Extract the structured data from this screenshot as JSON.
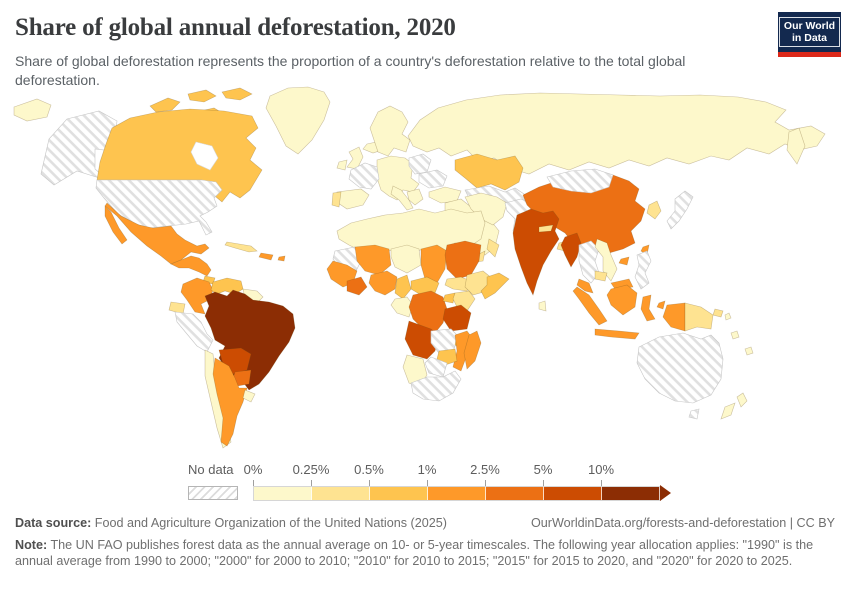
{
  "header": {
    "title": "Share of global annual deforestation, 2020",
    "subtitle": "Share of global deforestation represents the proportion of a country's deforestation relative to the total global deforestation.",
    "logo_line1": "Our World",
    "logo_line2": "in Data",
    "brand_colors": {
      "navy": "#13294f",
      "red": "#dc2819"
    }
  },
  "chart_data": {
    "type": "choropleth_map",
    "title": "Share of global annual deforestation, 2020",
    "unit": "%",
    "year": "2020",
    "legend": {
      "no_data_label": "No data",
      "tick_labels": [
        "0%",
        "0.25%",
        "0.5%",
        "1%",
        "2.5%",
        "5%",
        "10%"
      ],
      "bucket_ranges": [
        "0%–0.25%",
        "0.25%–0.5%",
        "0.5%–1%",
        "1%–2.5%",
        "2.5%–5%",
        "5%–10%",
        ">10%"
      ],
      "bucket_colors": [
        "#fdf8cb",
        "#fee391",
        "#fec44f",
        "#fe9929",
        "#ec7014",
        "#cc4c02",
        "#8c2d04"
      ],
      "no_data_fill": "hatched"
    },
    "regions": {
      "russia-east-tip": 0,
      "alaska": "no_data",
      "canada": 2,
      "arctic-islands": 2,
      "greenland": 0,
      "iceland": 0,
      "usa": "no_data",
      "mexico": 3,
      "central-america": 3,
      "panama": 2,
      "cuba": 1,
      "hispaniola": 3,
      "puerto-rico": 3,
      "colombia": 3,
      "venezuela": 2,
      "guianas": 0,
      "ecuador": 1,
      "peru": "no_data",
      "brazil": 6,
      "bolivia": 5,
      "paraguay": 4,
      "chile": 0,
      "argentina": 3,
      "uruguay": 0,
      "scandinavia": 0,
      "uk": 0,
      "ireland": 0,
      "france": "no_data",
      "central-europe": 0,
      "spain": 0,
      "portugal": 1,
      "italy": 0,
      "balkans": 0,
      "belarus-baltics": "no_data",
      "ukraine": "no_data",
      "russia": 0,
      "kamchatka": 0,
      "kazakhstan": 2,
      "central-asia": "no_data",
      "turkey": 0,
      "middle-east": 0,
      "iran": 0,
      "yemen": 1,
      "oman": 1,
      "afghanistan-pakistan": "no_data",
      "india": 5,
      "nepal": 1,
      "bangladesh": 1,
      "sri-lanka": 0,
      "china": 4,
      "mongolia": "no_data",
      "myanmar": 5,
      "thailand-laos": "no_data",
      "vietnam": 0,
      "cambodia": 1,
      "korea": 1,
      "japan": "no_data",
      "taiwan": 3,
      "hainan": 3,
      "philippines": "no_data",
      "malaysia": 3,
      "indonesia": 3,
      "papua-new-guinea": 1,
      "pacific-islands": 0,
      "australia": "no_data",
      "tasmania": "no_data",
      "new-zealand": 0,
      "north-africa": 0,
      "mauritania": "no_data",
      "mali": 3,
      "niger": 0,
      "chad": 3,
      "sudan": 4,
      "south-sudan": 1,
      "ethiopia": 1,
      "somalia": 2,
      "west-africa": 3,
      "ghana-cote-divoire": 4,
      "nigeria": 3,
      "cameroon": 2,
      "central-african-republic": 2,
      "gabon-congo": 0,
      "drc": 4,
      "uganda": 2,
      "kenya": 1,
      "tanzania": 5,
      "angola": 5,
      "zambia": "no_data",
      "malawi": 2,
      "mozambique": 3,
      "zimbabwe": 2,
      "botswana": "no_data",
      "namibia": 0,
      "south-africa": "no_data",
      "madagascar": 3
    }
  },
  "footer": {
    "data_source_label": "Data source:",
    "data_source_value": " Food and Agriculture Organization of the United Nations (2025)",
    "attribution": "OurWorldinData.org/forests-and-deforestation | CC BY",
    "note_label": "Note:",
    "note_text": " The UN FAO publishes forest data as the annual average on 10- or 5-year timescales. The following year allocation applies: \"1990\" is the annual average from 1990 to 2000; \"2000\" for 2000 to 2010; \"2010\" for 2010 to 2015; \"2015\" for 2015 to 2020, and \"2020\" for 2020 to 2025."
  }
}
